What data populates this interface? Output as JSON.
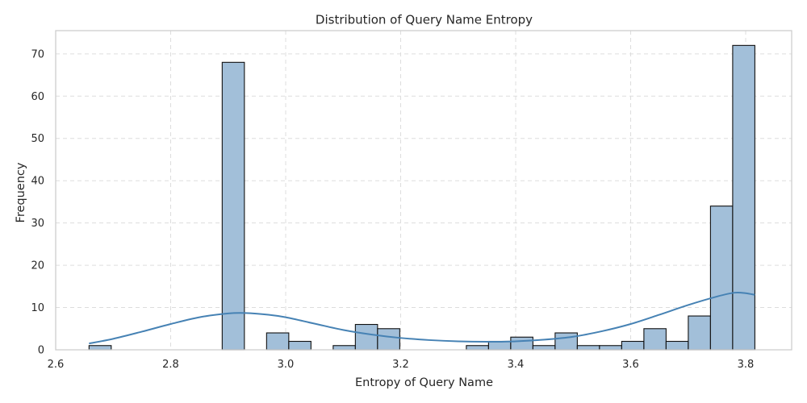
{
  "colors": {
    "bar_fill": "#a2bfd9",
    "bar_edge": "#111111",
    "kde_line": "#4682b4",
    "grid": "#dddddd",
    "frame": "#cccccc"
  },
  "chart_data": {
    "type": "bar",
    "title": "Distribution of Query Name Entropy",
    "xlabel": "Entropy of Query Name",
    "ylabel": "Frequency",
    "xlim": [
      2.6,
      3.88
    ],
    "ylim": [
      0,
      75.5
    ],
    "grid": true,
    "grid_style": "dashed",
    "xticks": [
      2.6,
      2.8,
      3.0,
      3.2,
      3.4,
      3.6,
      3.8
    ],
    "xtick_labels": [
      "2.6",
      "2.8",
      "3.0",
      "3.2",
      "3.4",
      "3.6",
      "3.8"
    ],
    "yticks": [
      0,
      10,
      20,
      30,
      40,
      50,
      60,
      70
    ],
    "ytick_labels": [
      "0",
      "10",
      "20",
      "30",
      "40",
      "50",
      "60",
      "70"
    ],
    "bin_width": 0.0386,
    "bins": [
      {
        "x0": 2.658,
        "x1": 2.6966,
        "count": 1
      },
      {
        "x0": 2.8896,
        "x1": 2.9282,
        "count": 68
      },
      {
        "x0": 2.9668,
        "x1": 3.0054,
        "count": 4
      },
      {
        "x0": 3.0054,
        "x1": 3.044,
        "count": 2
      },
      {
        "x0": 3.0826,
        "x1": 3.1212,
        "count": 1
      },
      {
        "x0": 3.1212,
        "x1": 3.1598,
        "count": 6
      },
      {
        "x0": 3.1598,
        "x1": 3.1984,
        "count": 5
      },
      {
        "x0": 3.3142,
        "x1": 3.3528,
        "count": 1
      },
      {
        "x0": 3.3528,
        "x1": 3.3914,
        "count": 2
      },
      {
        "x0": 3.3914,
        "x1": 3.43,
        "count": 3
      },
      {
        "x0": 3.43,
        "x1": 3.4686,
        "count": 1
      },
      {
        "x0": 3.4686,
        "x1": 3.5072,
        "count": 4
      },
      {
        "x0": 3.5072,
        "x1": 3.5458,
        "count": 1
      },
      {
        "x0": 3.5458,
        "x1": 3.5844,
        "count": 1
      },
      {
        "x0": 3.5844,
        "x1": 3.623,
        "count": 2
      },
      {
        "x0": 3.623,
        "x1": 3.6616,
        "count": 5
      },
      {
        "x0": 3.6616,
        "x1": 3.7002,
        "count": 2
      },
      {
        "x0": 3.7002,
        "x1": 3.7388,
        "count": 8
      },
      {
        "x0": 3.7388,
        "x1": 3.7774,
        "count": 34
      },
      {
        "x0": 3.7774,
        "x1": 3.816,
        "count": 72
      }
    ],
    "kde": {
      "x": [
        2.658,
        2.7,
        2.75,
        2.8,
        2.85,
        2.9,
        2.93,
        2.97,
        3.0,
        3.05,
        3.1,
        3.15,
        3.2,
        3.25,
        3.3,
        3.35,
        3.4,
        3.45,
        3.5,
        3.55,
        3.6,
        3.65,
        3.7,
        3.75,
        3.78,
        3.8,
        3.816
      ],
      "y": [
        1.5,
        2.6,
        4.3,
        6.1,
        7.7,
        8.6,
        8.7,
        8.3,
        7.7,
        6.2,
        4.7,
        3.6,
        2.8,
        2.3,
        2.0,
        1.9,
        2.0,
        2.4,
        3.1,
        4.4,
        6.1,
        8.3,
        10.6,
        12.6,
        13.5,
        13.4,
        13.0
      ]
    }
  }
}
